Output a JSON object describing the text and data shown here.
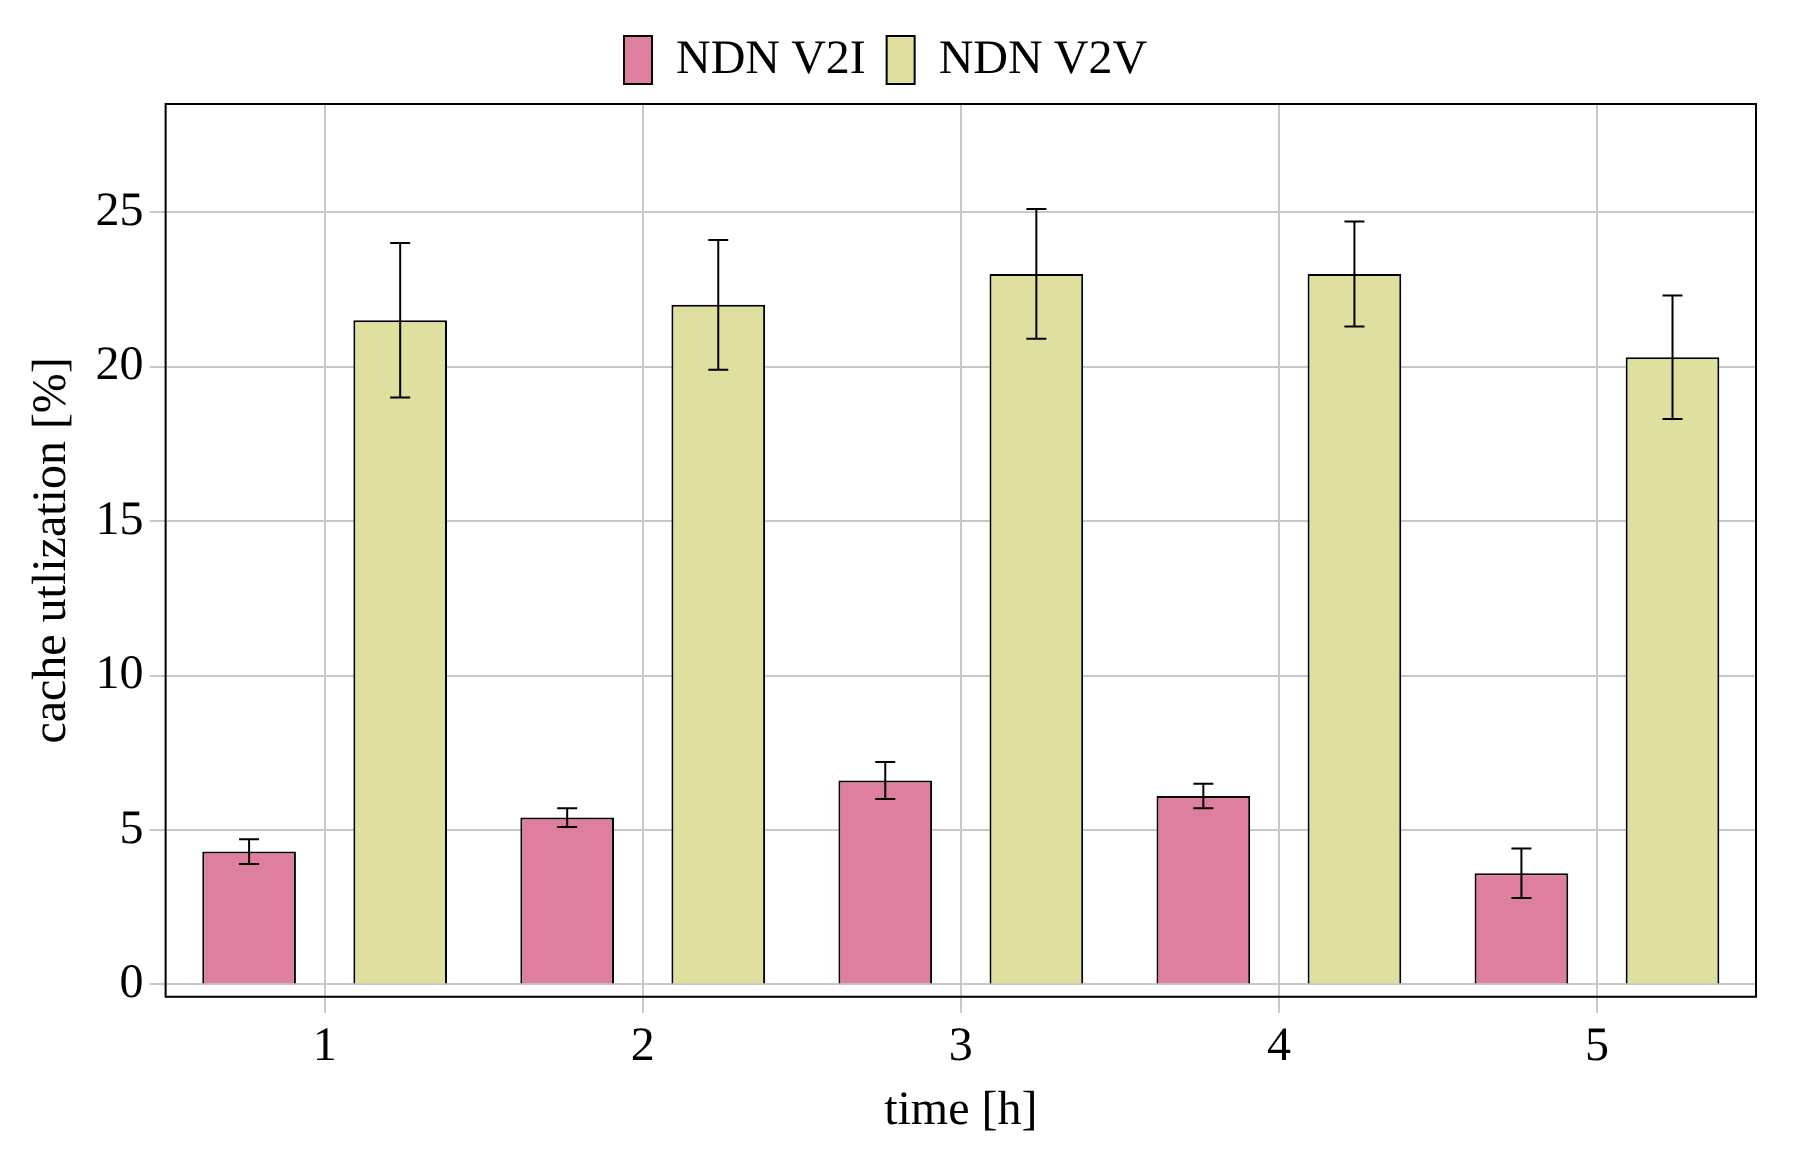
{
  "chart_data": {
    "type": "bar",
    "xlabel": "time [h]",
    "ylabel": "cache utlization [%]",
    "categories": [
      "1",
      "2",
      "3",
      "4",
      "5"
    ],
    "series": [
      {
        "name": "NDN V2I",
        "color": "#df7f9f",
        "values": [
          4.3,
          5.4,
          6.6,
          6.1,
          3.6
        ],
        "errors": [
          0.4,
          0.3,
          0.6,
          0.4,
          0.8
        ]
      },
      {
        "name": "NDN V2V",
        "color": "#dfdfa0",
        "values": [
          21.5,
          22.0,
          23.0,
          23.0,
          20.3
        ],
        "errors": [
          2.5,
          2.1,
          2.1,
          1.7,
          2.0
        ]
      }
    ],
    "ylim": [
      -0.4,
      28.5
    ],
    "yticks": [
      0,
      5,
      10,
      15,
      20,
      25
    ],
    "grid": true,
    "legend": "top"
  }
}
